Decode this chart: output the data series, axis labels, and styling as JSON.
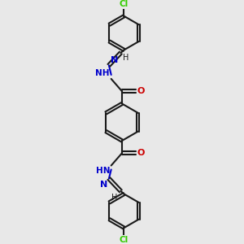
{
  "background_color": "#e8e8e8",
  "bond_color": "#1a1a1a",
  "nitrogen_color": "#0000cc",
  "oxygen_color": "#cc0000",
  "chlorine_color": "#33cc00",
  "line_width": 1.5,
  "figsize": [
    3.0,
    3.0
  ],
  "dpi": 100,
  "xlim": [
    0,
    10
  ],
  "ylim": [
    0,
    10
  ]
}
